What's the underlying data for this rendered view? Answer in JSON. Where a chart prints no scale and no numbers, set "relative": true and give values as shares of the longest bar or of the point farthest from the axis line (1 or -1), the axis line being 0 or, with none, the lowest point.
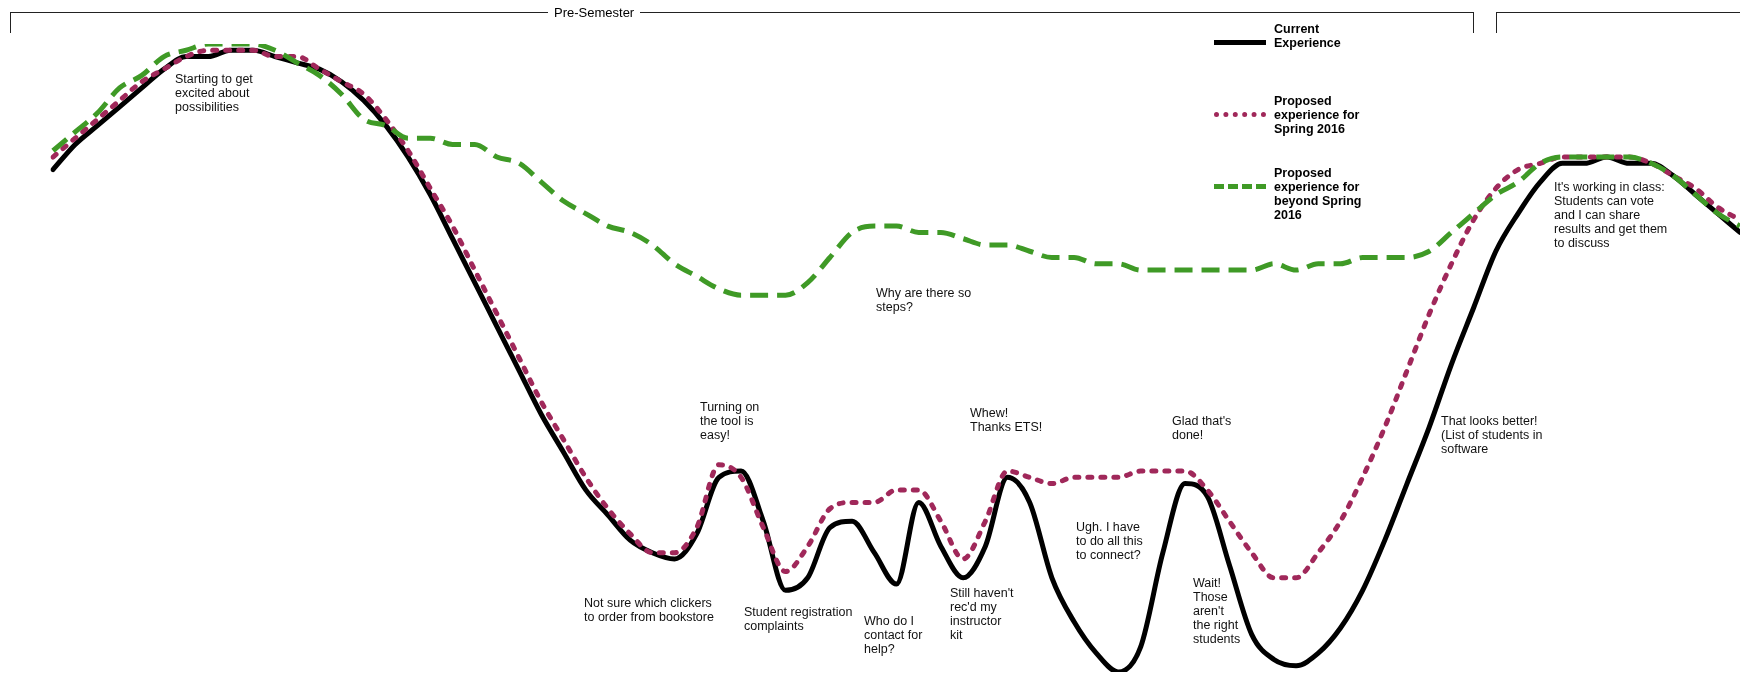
{
  "chart_data": {
    "type": "line",
    "relative": true,
    "legend": "top",
    "categories": [
      null,
      null,
      null,
      null,
      null,
      null,
      null,
      null,
      null,
      null,
      null,
      null,
      null,
      null,
      null,
      null,
      null,
      null,
      null,
      null,
      null,
      null,
      null,
      null,
      null,
      null,
      null,
      null,
      null,
      null,
      null,
      null,
      null,
      null,
      null,
      null,
      null,
      null,
      null,
      null,
      null,
      null,
      null,
      null,
      null,
      null,
      null,
      null,
      null,
      null,
      null,
      null,
      null,
      null,
      null,
      null,
      null,
      null,
      null,
      null,
      null,
      null,
      null,
      null,
      null,
      null,
      null,
      null,
      null,
      null,
      null,
      null,
      null,
      null,
      null,
      null,
      null
    ],
    "series": [
      {
        "name": "Current Experience",
        "color": "#000000",
        "line_style": "solid",
        "values": [
          0.8,
          0.84,
          0.87,
          0.9,
          0.93,
          0.96,
          0.98,
          0.98,
          0.99,
          0.99,
          0.98,
          0.97,
          0.96,
          0.94,
          0.91,
          0.87,
          0.82,
          0.76,
          0.69,
          0.62,
          0.55,
          0.48,
          0.41,
          0.35,
          0.29,
          0.25,
          0.21,
          0.19,
          0.18,
          0.22,
          0.31,
          0.32,
          0.24,
          0.13,
          0.15,
          0.23,
          0.24,
          0.19,
          0.14,
          0.27,
          0.2,
          0.15,
          0.2,
          0.31,
          0.27,
          0.15,
          0.08,
          0.03,
          0,
          0.04,
          0.19,
          0.3,
          0.28,
          0.17,
          0.06,
          0.02,
          0.01,
          0.03,
          0.07,
          0.13,
          0.21,
          0.3,
          0.39,
          0.49,
          0.58,
          0.67,
          0.73,
          0.78,
          0.81,
          0.81,
          0.82,
          0.81,
          0.81,
          0.79,
          0.76,
          0.73,
          0.7
        ]
      },
      {
        "name": "Proposed experience for Spring 2016",
        "color": "#a0285a",
        "line_style": "dotted",
        "values": [
          0.82,
          0.85,
          0.88,
          0.91,
          0.94,
          0.96,
          0.98,
          0.99,
          0.99,
          0.99,
          0.98,
          0.98,
          0.96,
          0.94,
          0.92,
          0.88,
          0.83,
          0.77,
          0.71,
          0.64,
          0.57,
          0.5,
          0.43,
          0.37,
          0.31,
          0.26,
          0.22,
          0.19,
          0.19,
          0.23,
          0.33,
          0.31,
          0.23,
          0.16,
          0.2,
          0.26,
          0.27,
          0.27,
          0.29,
          0.29,
          0.24,
          0.18,
          0.24,
          0.32,
          0.31,
          0.3,
          0.31,
          0.31,
          0.31,
          0.32,
          0.32,
          0.32,
          0.29,
          0.24,
          0.19,
          0.15,
          0.15,
          0.19,
          0.24,
          0.31,
          0.39,
          0.48,
          0.57,
          0.65,
          0.72,
          0.77,
          0.8,
          0.81,
          0.82,
          0.82,
          0.82,
          0.82,
          0.81,
          0.79,
          0.77,
          0.74,
          0.72
        ]
      },
      {
        "name": "Proposed experience for beyond Spring 2016",
        "color": "#3f9a26",
        "line_style": "dashed",
        "values": [
          0.83,
          0.86,
          0.89,
          0.93,
          0.95,
          0.98,
          0.99,
          1.0,
          1.0,
          1.0,
          0.99,
          0.97,
          0.95,
          0.92,
          0.88,
          0.87,
          0.85,
          0.85,
          0.84,
          0.84,
          0.82,
          0.81,
          0.78,
          0.75,
          0.73,
          0.71,
          0.7,
          0.68,
          0.65,
          0.63,
          0.61,
          0.6,
          0.6,
          0.6,
          0.62,
          0.66,
          0.7,
          0.71,
          0.71,
          0.7,
          0.7,
          0.69,
          0.68,
          0.68,
          0.67,
          0.66,
          0.66,
          0.65,
          0.65,
          0.64,
          0.64,
          0.64,
          0.64,
          0.64,
          0.64,
          0.65,
          0.64,
          0.65,
          0.65,
          0.66,
          0.66,
          0.66,
          0.67,
          0.7,
          0.73,
          0.76,
          0.78,
          0.81,
          0.82,
          0.82,
          0.82,
          0.82,
          0.81,
          0.79,
          0.76,
          0.73,
          0.71
        ]
      }
    ],
    "annotations": [
      "Pre-Semester",
      "Starting to get excited about possibilities",
      "Why are there so steps?",
      "Turning on the tool is easy!",
      "Whew! Thanks ETS!",
      "Glad that's done!",
      "That looks better! (List of students in software",
      "It's working in class: Students can vote and I can share results and get them to discuss",
      "Not sure which clickers to order from bookstore",
      "Student registration complaints",
      "Who do I contact for help?",
      "Still haven't rec'd my instructor kit",
      "Ugh. I have to do all this to connect?",
      "Wait! Those aren't the right students"
    ]
  }
}
